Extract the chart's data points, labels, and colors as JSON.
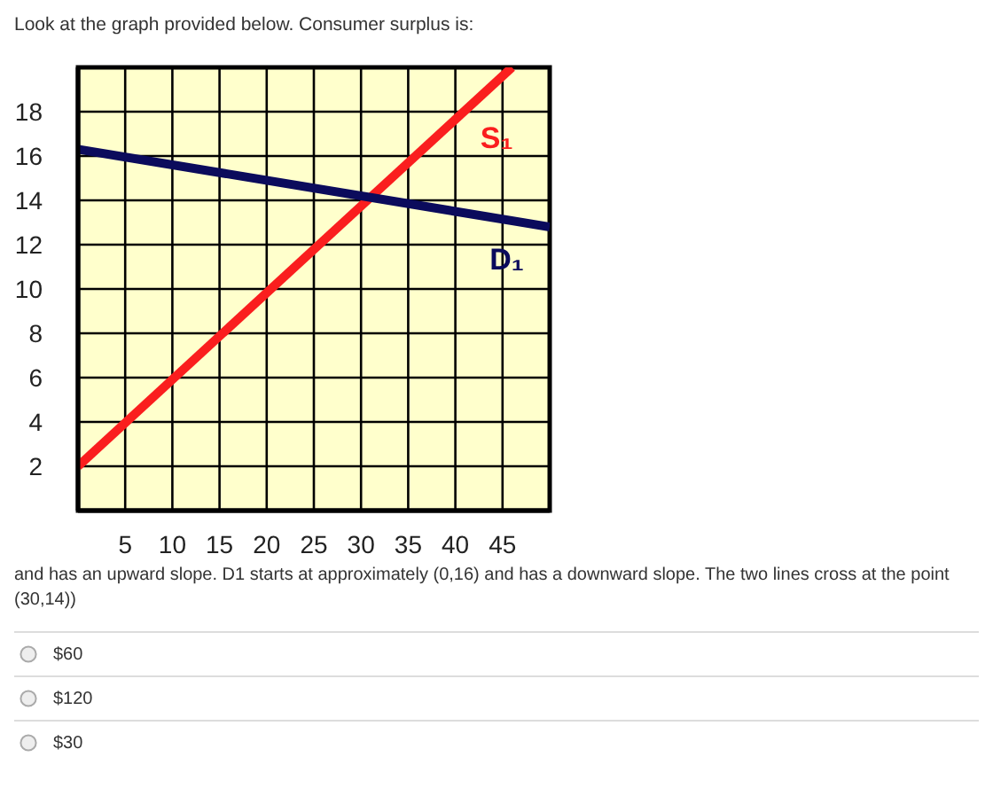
{
  "chart_data": {
    "type": "line",
    "title": "Look at the graph provided below. Consumer surplus is:",
    "series": [
      {
        "name": "S₁",
        "color": "#fa1e1e",
        "x": [
          0,
          46
        ],
        "values": [
          2,
          20
        ]
      },
      {
        "name": "D₁",
        "color": "#0b0b5c",
        "x": [
          0,
          50
        ],
        "values": [
          16.3,
          12.8
        ]
      }
    ],
    "xlim": [
      0,
      50
    ],
    "xticks": [
      5,
      10,
      15,
      20,
      25,
      30,
      35,
      40,
      45
    ],
    "ylim": [
      0,
      20
    ],
    "yticks": [
      2,
      4,
      6,
      8,
      10,
      12,
      14,
      16,
      18
    ],
    "grid": true,
    "marker": "none",
    "line_style": "solid",
    "legend": false,
    "annotations": [
      "and has an upward slope. D1 starts at approximately (0,16) and has a downward slope. The two lines cross at the point (30,14))",
      "$60",
      "$120",
      "$30"
    ]
  }
}
